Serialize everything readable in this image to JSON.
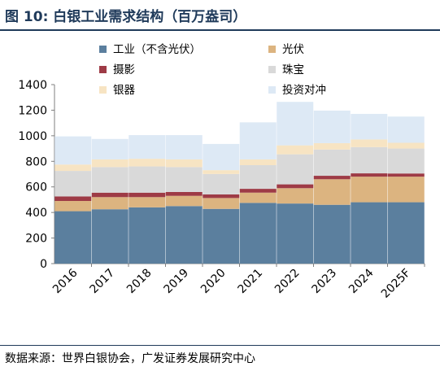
{
  "title": "图 10: 白银工业需求结构（百万盎司）",
  "source": "数据来源：世界白银协会，广发证券发展研究中心",
  "chart_data": {
    "type": "bar",
    "stacked": true,
    "title": "图 10: 白银工业需求结构（百万盎司）",
    "xlabel": "",
    "ylabel": "",
    "ylim": [
      0,
      1400
    ],
    "yticks": [
      0,
      200,
      400,
      600,
      800,
      1000,
      1200,
      1400
    ],
    "grid": false,
    "legend_placement": "top",
    "categories": [
      "2016",
      "2017",
      "2018",
      "2019",
      "2020",
      "2021",
      "2022",
      "2023",
      "2024",
      "2025F"
    ],
    "series": [
      {
        "name": "工业（不含光伏）",
        "color": "#5b7f9e",
        "values": [
          410,
          425,
          440,
          450,
          428,
          475,
          470,
          460,
          480,
          480
        ]
      },
      {
        "name": "光伏",
        "color": "#dcb480",
        "values": [
          80,
          95,
          80,
          80,
          85,
          80,
          120,
          200,
          200,
          200
        ]
      },
      {
        "name": "摄影",
        "color": "#9e3b46",
        "values": [
          35,
          35,
          35,
          30,
          28,
          30,
          30,
          27,
          26,
          25
        ]
      },
      {
        "name": "珠宝",
        "color": "#d9d9d9",
        "values": [
          200,
          200,
          205,
          195,
          160,
          185,
          235,
          205,
          205,
          195
        ]
      },
      {
        "name": "银器",
        "color": "#f7e4c3",
        "values": [
          50,
          60,
          60,
          60,
          30,
          45,
          70,
          50,
          60,
          45
        ]
      },
      {
        "name": "投资对冲",
        "color": "#dde9f5",
        "values": [
          220,
          160,
          185,
          190,
          205,
          290,
          340,
          255,
          200,
          205
        ]
      }
    ]
  }
}
